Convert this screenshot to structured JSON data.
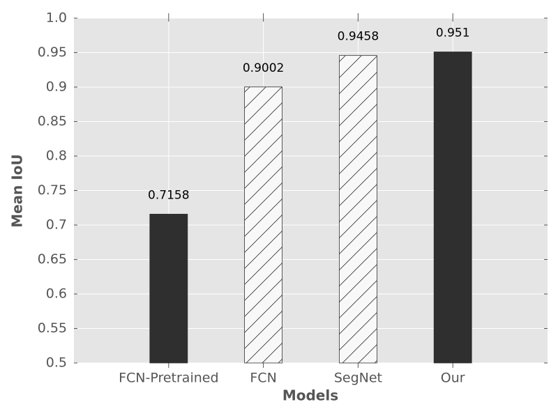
{
  "chart_data": {
    "type": "bar",
    "xlabel": "Models",
    "ylabel": "Mean IoU",
    "categories": [
      "FCN-Pretrained",
      "FCN",
      "SegNet",
      "Our"
    ],
    "values": [
      0.7158,
      0.9002,
      0.9458,
      0.951
    ],
    "colors": [
      "#2f2f2f",
      "#f8f8f8",
      "#f8f8f8",
      "#2f2f2f"
    ],
    "hatch": [
      false,
      true,
      true,
      false
    ],
    "ylim": [
      0.5,
      1.0
    ],
    "yticks": [
      0.5,
      0.55,
      0.6,
      0.65,
      0.7,
      0.75,
      0.8,
      0.85,
      0.9,
      0.95,
      {
        "value": 1.0,
        "label": "1.0"
      }
    ],
    "grid": true
  }
}
